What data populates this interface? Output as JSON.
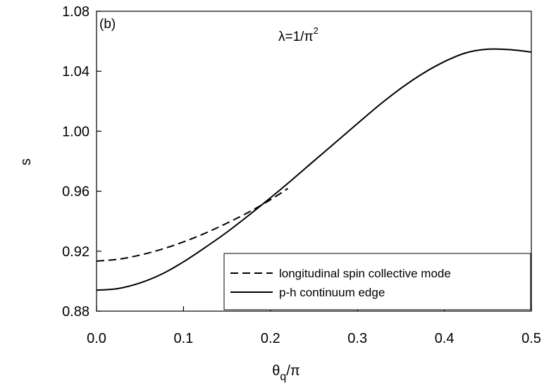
{
  "chart_data": {
    "type": "line",
    "panel_label": "(b)",
    "annotation": {
      "prefix": "λ=1/π",
      "superscript": "2"
    },
    "xlabel": {
      "main": "θ",
      "sub": "q",
      "suffix": "/π"
    },
    "ylabel": "s",
    "xlim": [
      0.0,
      0.5
    ],
    "ylim": [
      0.88,
      1.08
    ],
    "xticks": [
      "0.0",
      "0.1",
      "0.2",
      "0.3",
      "0.4",
      "0.5"
    ],
    "yticks": [
      "0.88",
      "0.92",
      "0.96",
      "1.00",
      "1.04",
      "1.08"
    ],
    "legend_position": "bottom-right",
    "series": [
      {
        "name": "longitudinal spin collective mode",
        "style": "dashed",
        "color": "#000000",
        "x": [
          0.0,
          0.025,
          0.05,
          0.075,
          0.1,
          0.125,
          0.15,
          0.175,
          0.2,
          0.22
        ],
        "y": [
          0.9134,
          0.9146,
          0.9174,
          0.9213,
          0.9262,
          0.932,
          0.9387,
          0.946,
          0.9543,
          0.9618
        ]
      },
      {
        "name": "p-h continuum edge",
        "style": "solid",
        "color": "#000000",
        "x": [
          0.0,
          0.025,
          0.05,
          0.075,
          0.1,
          0.125,
          0.15,
          0.175,
          0.2,
          0.225,
          0.25,
          0.275,
          0.3,
          0.325,
          0.35,
          0.375,
          0.4,
          0.425,
          0.45,
          0.475,
          0.5
        ],
        "y": [
          0.894,
          0.8951,
          0.8988,
          0.9047,
          0.9129,
          0.9225,
          0.9327,
          0.9439,
          0.9556,
          0.9677,
          0.9802,
          0.9926,
          1.0051,
          1.0174,
          1.0286,
          1.0384,
          1.0464,
          1.0523,
          1.0547,
          1.0544,
          1.0528
        ]
      }
    ]
  }
}
